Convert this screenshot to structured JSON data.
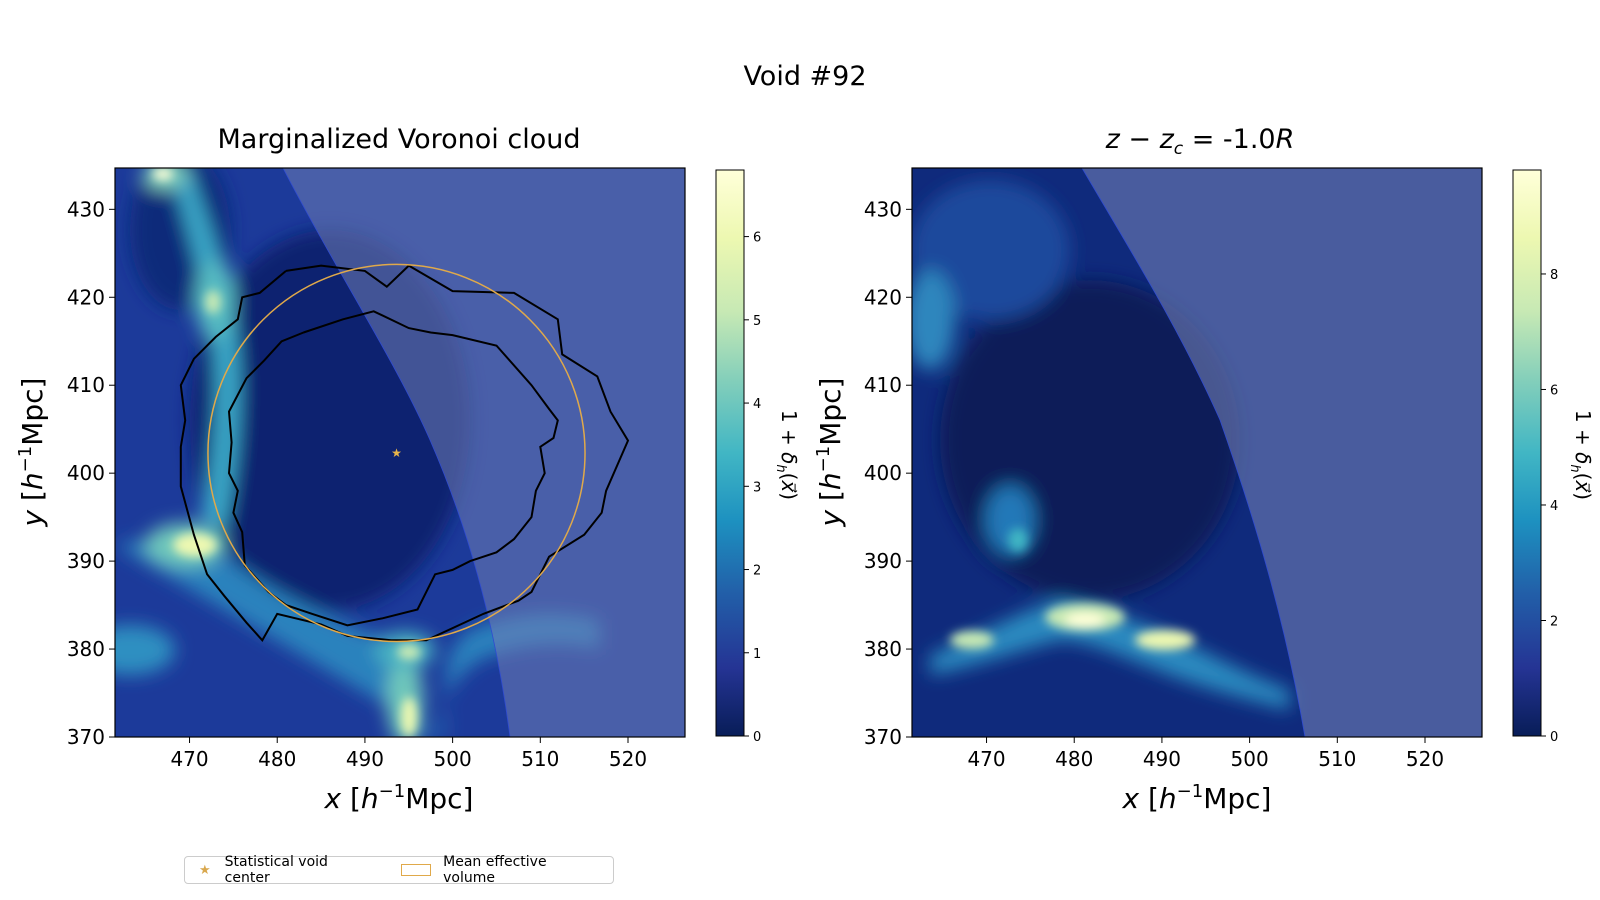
{
  "figure": {
    "suptitle": "Void #92"
  },
  "chart_data": [
    {
      "type": "heatmap",
      "title": "Marginalized Voronoi cloud",
      "xlabel": "x [h^-1 Mpc]",
      "ylabel": "y [h^-1 Mpc]",
      "xlim": [
        461.5,
        526.5
      ],
      "ylim": [
        370,
        434.7
      ],
      "xticks": [
        470,
        480,
        490,
        500,
        510,
        520
      ],
      "yticks": [
        370,
        380,
        390,
        400,
        410,
        420,
        430
      ],
      "colorbar": {
        "label": "1 + δh(x)",
        "min": 0,
        "max": 6.8,
        "ticks": [
          0,
          1,
          2,
          3,
          4,
          5,
          6
        ]
      },
      "void_center": [
        493.6,
        402.3
      ],
      "mean_effective_radius": 21.5,
      "outer_contour": [
        [
          481,
          423
        ],
        [
          485,
          423.6
        ],
        [
          490,
          423
        ],
        [
          492.5,
          421.2
        ],
        [
          495,
          423.6
        ],
        [
          500,
          420.7
        ],
        [
          507,
          420.5
        ],
        [
          512,
          417.5
        ],
        [
          512.5,
          413.5
        ],
        [
          516.5,
          411
        ],
        [
          518,
          407
        ],
        [
          520,
          403.7
        ],
        [
          517.5,
          398
        ],
        [
          517,
          395.5
        ],
        [
          515,
          393
        ],
        [
          511,
          390.5
        ],
        [
          509,
          386.5
        ],
        [
          507.5,
          385.5
        ],
        [
          503.5,
          384
        ],
        [
          497,
          381
        ],
        [
          493,
          381
        ],
        [
          488,
          381.5
        ],
        [
          485,
          382.8
        ],
        [
          480,
          384
        ],
        [
          478.3,
          381
        ],
        [
          476.5,
          383
        ],
        [
          474,
          386
        ],
        [
          472,
          388.5
        ],
        [
          470.5,
          393
        ],
        [
          469,
          398.5
        ],
        [
          469,
          403
        ],
        [
          469.5,
          406
        ],
        [
          469,
          410
        ],
        [
          470.5,
          413
        ],
        [
          473,
          415.5
        ],
        [
          475.5,
          417.5
        ],
        [
          476,
          420
        ],
        [
          478,
          420.5
        ],
        [
          481,
          423
        ]
      ],
      "inner_contour": [
        [
          483,
          416
        ],
        [
          487.5,
          417.5
        ],
        [
          491,
          418.4
        ],
        [
          495,
          416.5
        ],
        [
          497.5,
          416
        ],
        [
          500,
          415.7
        ],
        [
          505,
          414.5
        ],
        [
          509,
          410
        ],
        [
          511,
          407.3
        ],
        [
          512,
          406
        ],
        [
          511.5,
          404
        ],
        [
          510,
          403
        ],
        [
          510.5,
          400
        ],
        [
          509.5,
          398
        ],
        [
          509,
          395
        ],
        [
          507,
          392.5
        ],
        [
          505,
          391
        ],
        [
          502,
          390
        ],
        [
          500,
          389
        ],
        [
          498,
          388.5
        ],
        [
          496,
          384.5
        ],
        [
          492,
          383.5
        ],
        [
          488,
          382.7
        ],
        [
          484,
          384
        ],
        [
          481,
          385
        ],
        [
          479,
          386.5
        ],
        [
          476.3,
          389.5
        ],
        [
          476,
          393.3
        ],
        [
          475,
          395.5
        ],
        [
          475.5,
          398
        ],
        [
          474.5,
          400
        ],
        [
          474.8,
          403.5
        ],
        [
          474.5,
          407
        ],
        [
          476.5,
          410.8
        ],
        [
          478.5,
          412.8
        ],
        [
          480.5,
          415
        ],
        [
          483,
          416
        ]
      ]
    },
    {
      "type": "heatmap",
      "title": "z − z_c = -1.0R",
      "xlabel": "x [h^-1 Mpc]",
      "ylabel": "y [h^-1 Mpc]",
      "xlim": [
        461.5,
        526.5
      ],
      "ylim": [
        370,
        434.7
      ],
      "xticks": [
        470,
        480,
        490,
        500,
        510,
        520
      ],
      "yticks": [
        370,
        380,
        390,
        400,
        410,
        420,
        430
      ],
      "colorbar": {
        "label": "1 + δh(x)",
        "min": 0,
        "max": 9.8,
        "ticks": [
          0,
          2,
          4,
          6,
          8
        ]
      }
    }
  ],
  "legend": {
    "center_label": "Statistical void center",
    "volume_label": "Mean effective volume"
  }
}
